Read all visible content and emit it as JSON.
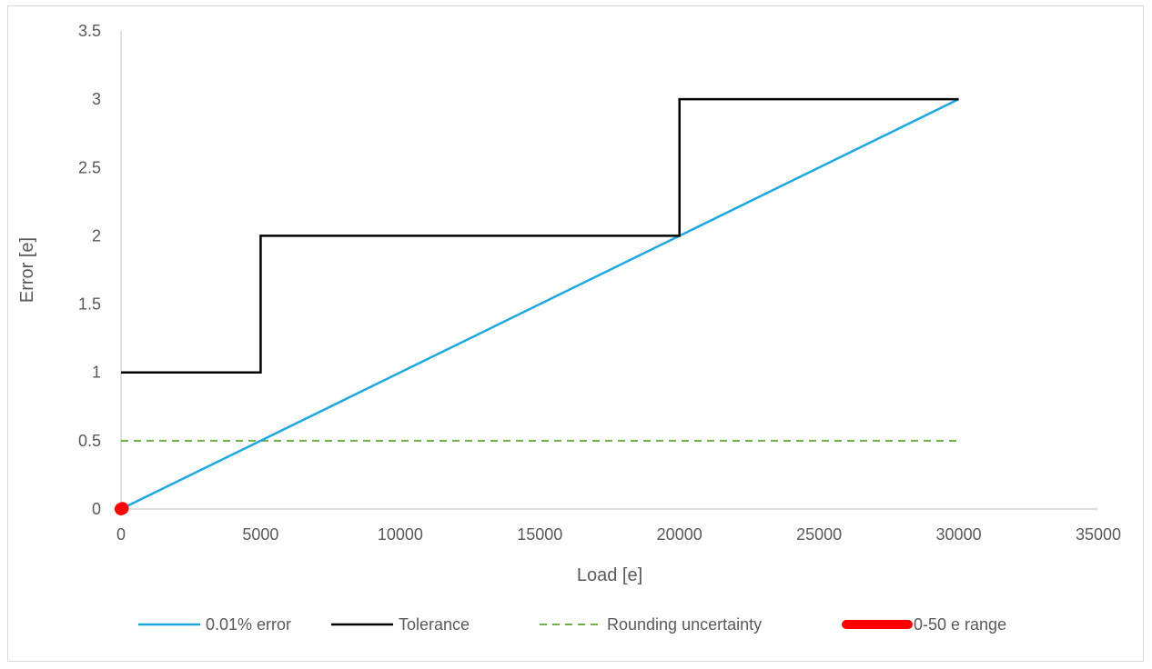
{
  "chart_data": {
    "type": "line",
    "title": "",
    "xlabel": "Load [e]",
    "ylabel": "Error [e]",
    "xlim": [
      0,
      35000
    ],
    "ylim": [
      0,
      3.5
    ],
    "x_ticks": [
      0,
      5000,
      10000,
      15000,
      20000,
      25000,
      30000,
      35000
    ],
    "x_tick_labels": [
      "0",
      "5000",
      "10000",
      "15000",
      "20000",
      "25000",
      "30000",
      "35000"
    ],
    "y_ticks": [
      0,
      0.5,
      1,
      1.5,
      2,
      2.5,
      3,
      3.5
    ],
    "y_tick_labels": [
      "0",
      "0.5",
      "1",
      "1.5",
      "2",
      "2.5",
      "3",
      "3.5"
    ],
    "grid": false,
    "legend_position": "bottom",
    "series": [
      {
        "name": "0.01% error",
        "color": "#1fa8e0",
        "style": "solid",
        "x": [
          0,
          30000
        ],
        "y": [
          0,
          3
        ]
      },
      {
        "name": "Tolerance",
        "color": "#000000",
        "style": "solid",
        "x": [
          0,
          5000,
          5000,
          20000,
          20000,
          30000
        ],
        "y": [
          1,
          1,
          2,
          2,
          3,
          3
        ]
      },
      {
        "name": "Rounding uncertainty",
        "color": "#70ad47",
        "style": "dashed",
        "x": [
          0,
          30000
        ],
        "y": [
          0.5,
          0.5
        ]
      },
      {
        "name": "0-50 e range",
        "color": "#ff0000",
        "style": "thick",
        "x": [
          0,
          50
        ],
        "y": [
          0,
          0.005
        ]
      }
    ]
  }
}
